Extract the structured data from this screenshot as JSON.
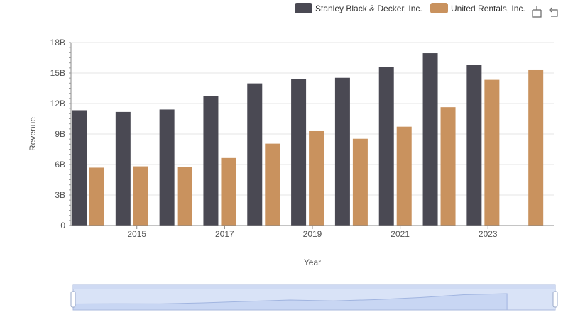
{
  "chart_data": {
    "type": "bar",
    "title": "",
    "xlabel": "Year",
    "ylabel": "Revenue",
    "x": [
      2014,
      2015,
      2016,
      2017,
      2018,
      2019,
      2020,
      2021,
      2022,
      2023,
      2024
    ],
    "x_tick_labels": [
      "2015",
      "2017",
      "2019",
      "2021",
      "2023"
    ],
    "y_tick_labels": [
      "0",
      "3B",
      "6B",
      "9B",
      "12B",
      "15B",
      "18B"
    ],
    "ylim": [
      0,
      18000000000
    ],
    "grid": true,
    "legend_position": "top-right",
    "series": [
      {
        "name": "Stanley Black & Decker, Inc.",
        "color": "#4a4953",
        "values": [
          11340000000,
          11170000000,
          11410000000,
          12750000000,
          13980000000,
          14440000000,
          14530000000,
          15620000000,
          16950000000,
          15780000000,
          null
        ]
      },
      {
        "name": "United Rentals, Inc.",
        "color": "#c9925e",
        "values": [
          5690000000,
          5820000000,
          5760000000,
          6640000000,
          8050000000,
          9350000000,
          8530000000,
          9720000000,
          11640000000,
          14330000000,
          15350000000
        ]
      }
    ]
  },
  "toolbar": {
    "icons": [
      "zoom-icon",
      "restore-icon"
    ]
  },
  "datazoom": {
    "range_start_percent": 0,
    "range_end_percent": 100
  }
}
